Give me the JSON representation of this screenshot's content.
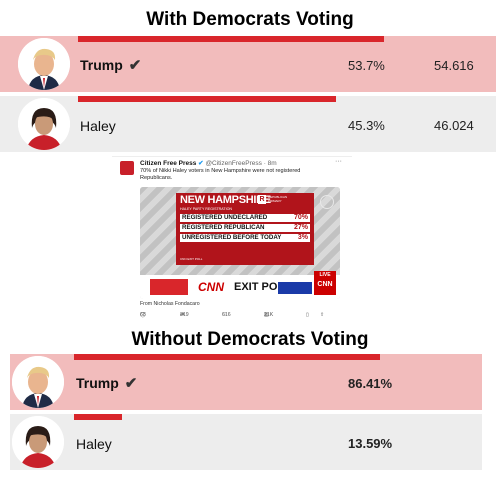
{
  "section_with": {
    "title": "With Democrats Voting",
    "candidates": [
      {
        "name": "Trump",
        "winner_mark": "✔",
        "percent": "53.7%",
        "votes": "54.616",
        "bar_fraction": 0.537
      },
      {
        "name": "Haley",
        "percent": "45.3%",
        "votes": "46.024",
        "bar_fraction": 0.453
      }
    ]
  },
  "tweet": {
    "account_name": "Citizen Free Press",
    "verified_mark": "✔",
    "handle": "@CitizenFreePress · 8m",
    "more": "···",
    "text": "70% of Nikki Haley voters in New Hampshire were not registered Republicans.",
    "graphic": {
      "state": "NEW HAMPSHIRE",
      "badge_letter": "R",
      "badge_text": "REPUBLICAN PRIMARY",
      "subtitle": "HALEY PARTY REGISTRATION",
      "rows": [
        {
          "label": "REGISTERED UNDECLARED",
          "value": "70%"
        },
        {
          "label": "REGISTERED REPUBLICAN",
          "value": "27%"
        },
        {
          "label": "UNREGISTERED BEFORE TODAY",
          "value": "3%"
        }
      ],
      "source": "CNN EXIT POLL",
      "network": "CNN",
      "exit_poll": "EXIT POLL",
      "live": "LIVE"
    },
    "from": "From Nicholas Fondacaro",
    "actions": {
      "replies": "68",
      "retweets": "319",
      "likes": "616",
      "views": "21K"
    }
  },
  "section_without": {
    "title": "Without Democrats Voting",
    "candidates": [
      {
        "name": "Trump",
        "winner_mark": "✔",
        "percent": "86.41%",
        "bar_fraction": 0.8641
      },
      {
        "name": "Haley",
        "percent": "13.59%",
        "bar_fraction": 0.1359
      }
    ]
  },
  "colors": {
    "bar": "#d9262b",
    "leader_row": "#f2bcbc",
    "other_row": "#ededed"
  }
}
